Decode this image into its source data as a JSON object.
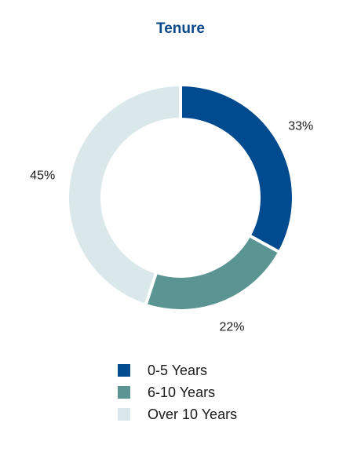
{
  "chart_data": {
    "type": "pie",
    "style": "donut",
    "title": "Tenure",
    "slices": [
      {
        "label": "0-5 Years",
        "value": 33,
        "display": "33%",
        "color": "#004a8f"
      },
      {
        "label": "6-10 Years",
        "value": 22,
        "display": "22%",
        "color": "#5a9593"
      },
      {
        "label": "Over 10 Years",
        "value": 45,
        "display": "45%",
        "color": "#dbe8eb"
      }
    ],
    "legend_position": "bottom"
  }
}
